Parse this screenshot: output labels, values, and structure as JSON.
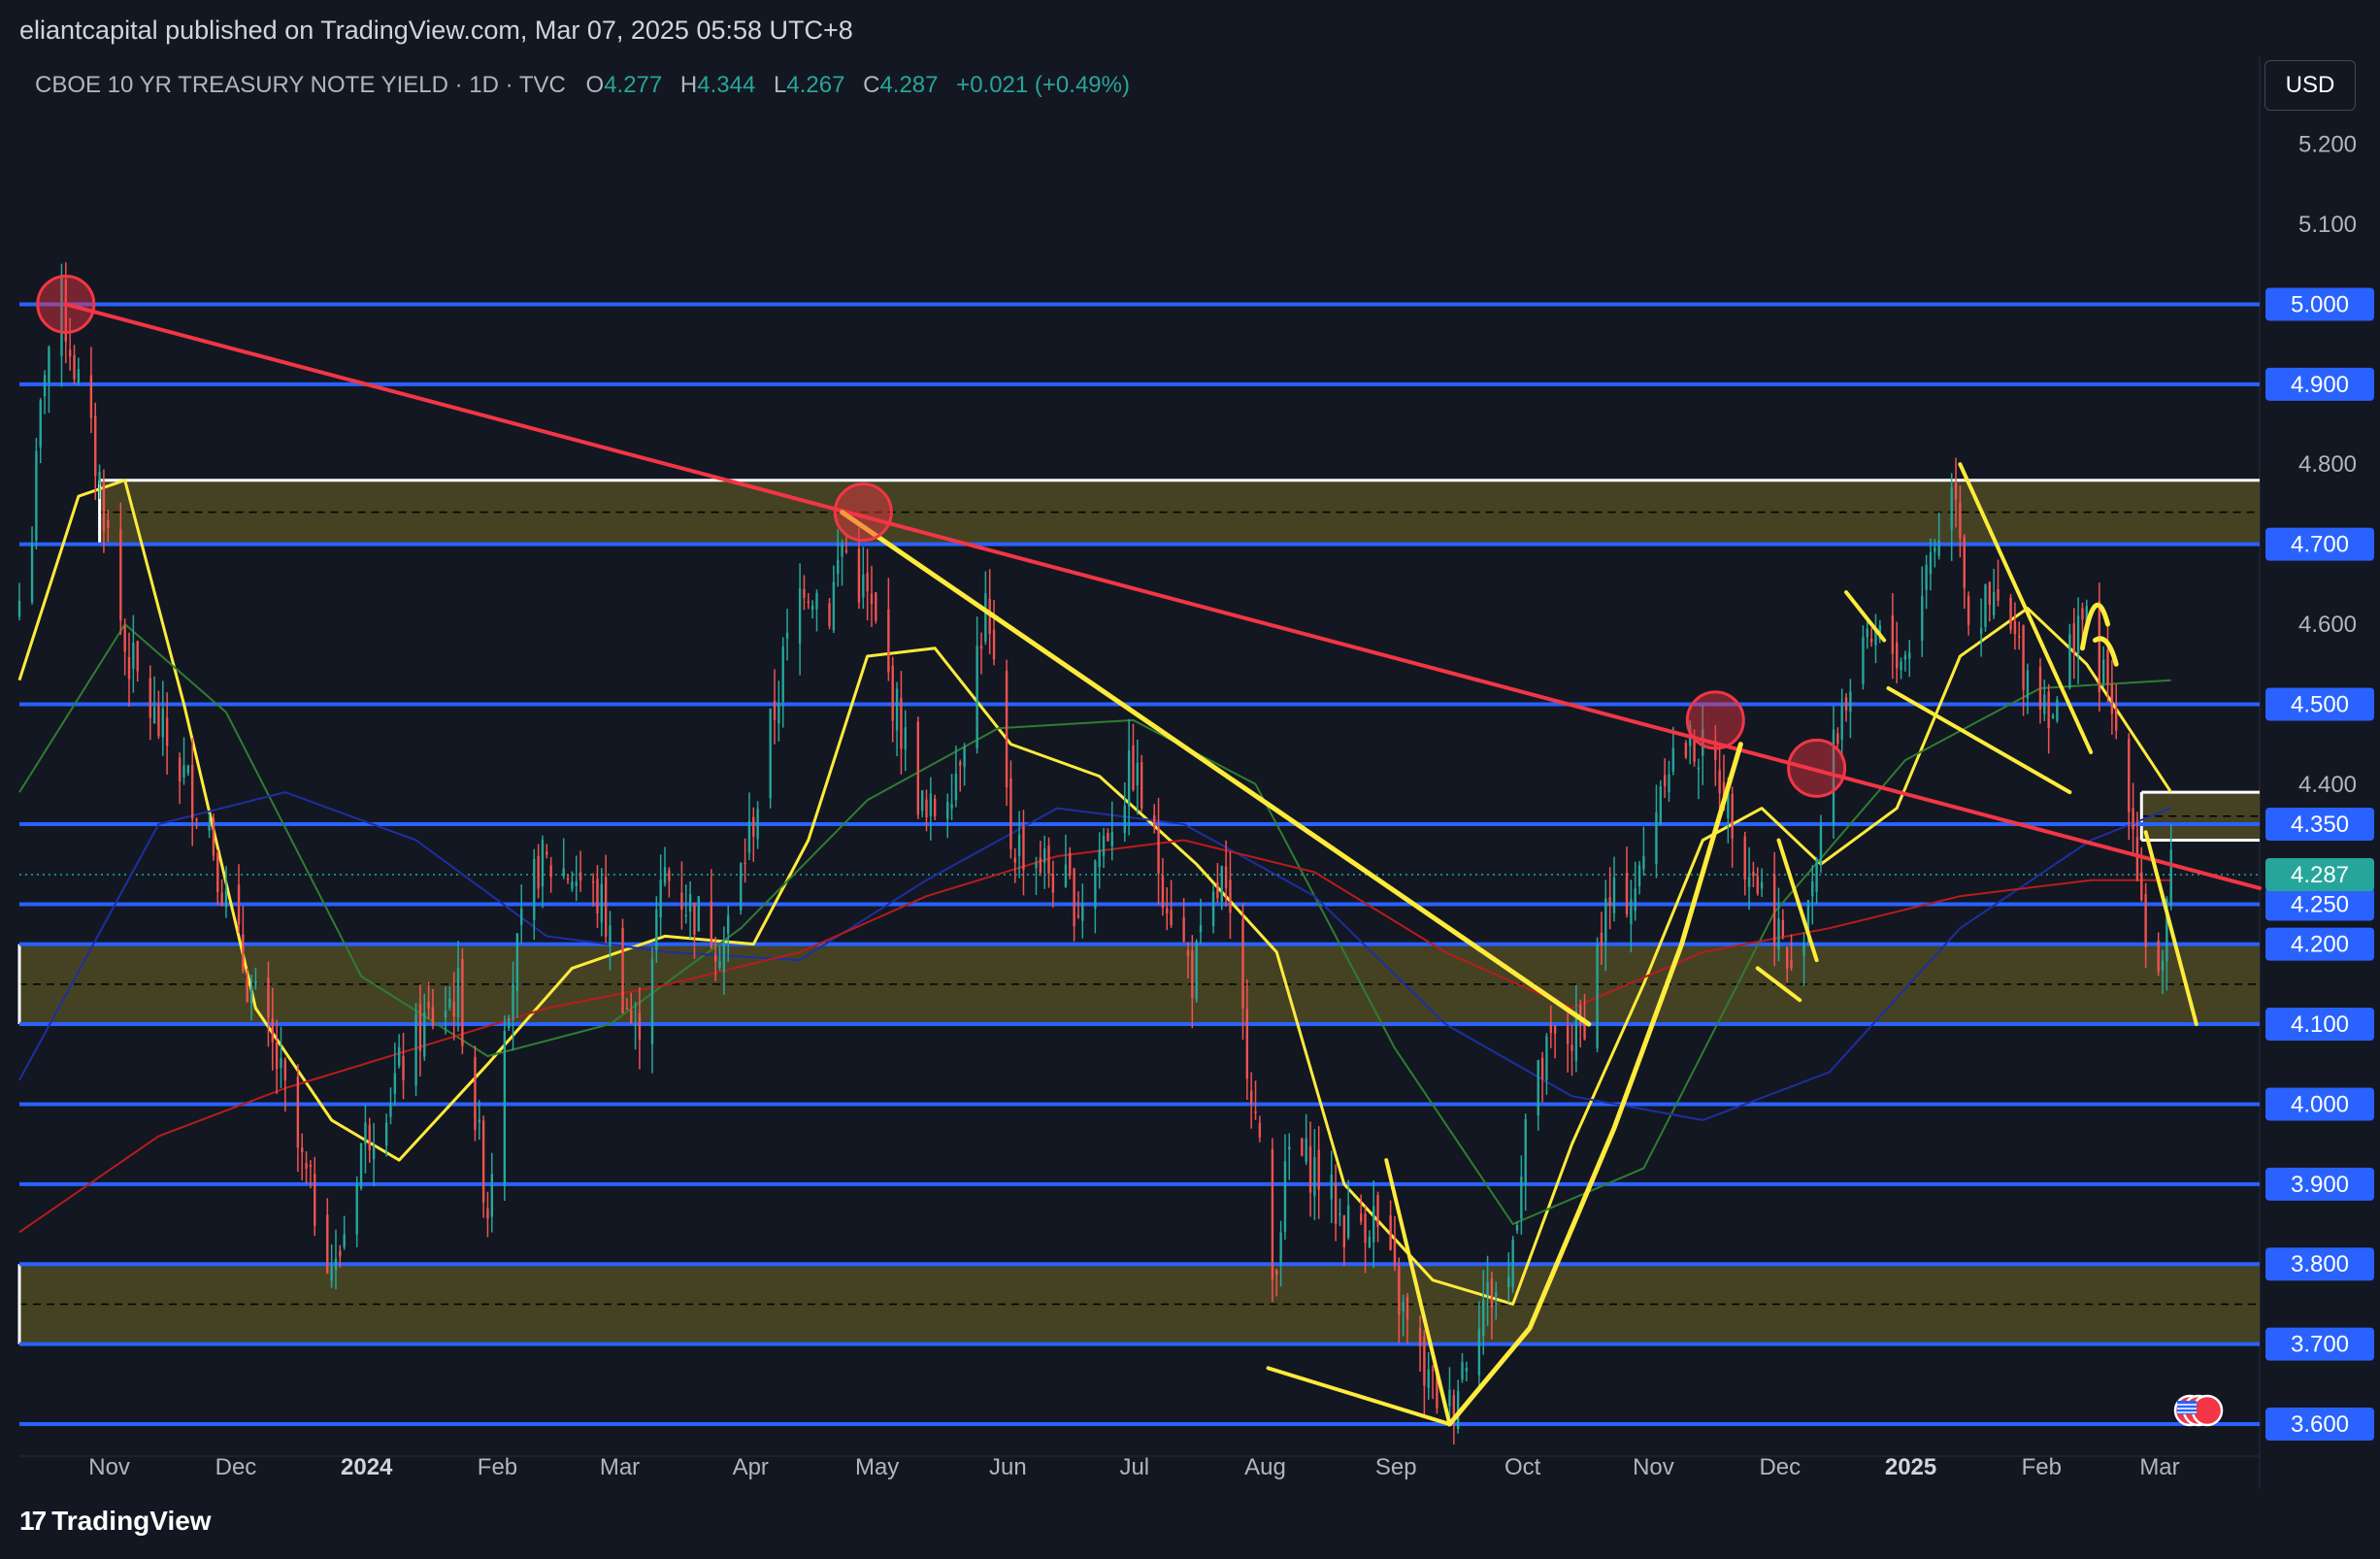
{
  "header": {
    "published": "eliantcapital published on TradingView.com, Mar 07, 2025 05:58 UTC+8"
  },
  "legend": {
    "symbol": "CBOE 10 YR TREASURY NOTE YIELD · 1D · TVC",
    "open_label": "O",
    "open": "4.277",
    "high_label": "H",
    "high": "4.344",
    "low_label": "L",
    "low": "4.267",
    "close_label": "C",
    "close": "4.287",
    "change": "+0.021 (+0.49%)"
  },
  "currency": "USD",
  "footer": {
    "brand": "TradingView",
    "logo_mark": "17"
  },
  "colors": {
    "background": "#131722",
    "up_candle": "#26a69a",
    "down_candle": "#ef5350",
    "level_line": "#2962ff",
    "zone_fill": "#4f4a25",
    "trendline_red": "#f23645",
    "trendline_yellow": "#ffeb3b"
  },
  "chart_data": {
    "type": "candlestick",
    "title": "CBOE 10 YR TREASURY NOTE YIELD · 1D · TVC",
    "ylim": [
      3.56,
      5.31
    ],
    "y_tick_labels": [
      "5.200",
      "5.100",
      "4.800",
      "4.600",
      "4.400"
    ],
    "x_tick_labels": [
      "Nov",
      "Dec",
      "2024",
      "Feb",
      "Mar",
      "Apr",
      "May",
      "Jun",
      "Jul",
      "Aug",
      "Sep",
      "Oct",
      "Nov",
      "Dec",
      "2025",
      "Feb",
      "Mar"
    ],
    "x_tick_bold": [
      "2024",
      "2025"
    ],
    "x_range": [
      "2023-10-13",
      "2025-03-27"
    ],
    "horizontal_levels": [
      {
        "value": 5.0,
        "label": "5.000"
      },
      {
        "value": 4.9,
        "label": "4.900"
      },
      {
        "value": 4.7,
        "label": "4.700"
      },
      {
        "value": 4.5,
        "label": "4.500"
      },
      {
        "value": 4.35,
        "label": "4.350"
      },
      {
        "value": 4.25,
        "label": "4.250"
      },
      {
        "value": 4.2,
        "label": "4.200"
      },
      {
        "value": 4.1,
        "label": "4.100"
      },
      {
        "value": 4.0,
        "label": "4.000"
      },
      {
        "value": 3.9,
        "label": "3.900"
      },
      {
        "value": 3.8,
        "label": "3.800"
      },
      {
        "value": 3.7,
        "label": "3.700"
      },
      {
        "value": 3.6,
        "label": "3.600"
      }
    ],
    "last_price": {
      "value": 4.287,
      "label": "4.287"
    },
    "zones": [
      {
        "from": 4.7,
        "to": 4.78,
        "start": "2023-11-01",
        "end": "2025-03-27"
      },
      {
        "from": 4.1,
        "to": 4.2,
        "start": "2023-10-13",
        "end": "2025-03-27"
      },
      {
        "from": 3.7,
        "to": 3.8,
        "start": "2023-10-13",
        "end": "2025-03-27"
      },
      {
        "from": 4.33,
        "to": 4.39,
        "start": "2025-02-27",
        "end": "2025-03-27"
      }
    ],
    "close_series": [
      [
        "2023-10-13",
        4.63
      ],
      [
        "2023-10-16",
        4.72
      ],
      [
        "2023-10-19",
        4.93
      ],
      [
        "2023-10-23",
        5.0
      ],
      [
        "2023-10-27",
        4.9
      ],
      [
        "2023-11-01",
        4.78
      ],
      [
        "2023-11-07",
        4.57
      ],
      [
        "2023-11-14",
        4.48
      ],
      [
        "2023-11-20",
        4.42
      ],
      [
        "2023-11-27",
        4.35
      ],
      [
        "2023-12-01",
        4.25
      ],
      [
        "2023-12-07",
        4.14
      ],
      [
        "2023-12-13",
        4.05
      ],
      [
        "2023-12-19",
        3.92
      ],
      [
        "2023-12-27",
        3.79
      ],
      [
        "2024-01-02",
        3.95
      ],
      [
        "2024-01-09",
        4.02
      ],
      [
        "2024-01-17",
        4.1
      ],
      [
        "2024-01-25",
        4.14
      ],
      [
        "2024-02-01",
        3.87
      ],
      [
        "2024-02-05",
        4.12
      ],
      [
        "2024-02-13",
        4.3
      ],
      [
        "2024-02-21",
        4.29
      ],
      [
        "2024-02-28",
        4.25
      ],
      [
        "2024-03-07",
        4.08
      ],
      [
        "2024-03-14",
        4.29
      ],
      [
        "2024-03-21",
        4.24
      ],
      [
        "2024-03-28",
        4.2
      ],
      [
        "2024-04-05",
        4.38
      ],
      [
        "2024-04-11",
        4.55
      ],
      [
        "2024-04-16",
        4.66
      ],
      [
        "2024-04-22",
        4.62
      ],
      [
        "2024-04-25",
        4.7
      ],
      [
        "2024-05-01",
        4.63
      ],
      [
        "2024-05-08",
        4.49
      ],
      [
        "2024-05-15",
        4.35
      ],
      [
        "2024-05-22",
        4.42
      ],
      [
        "2024-05-29",
        4.62
      ],
      [
        "2024-06-04",
        4.33
      ],
      [
        "2024-06-12",
        4.3
      ],
      [
        "2024-06-20",
        4.25
      ],
      [
        "2024-06-28",
        4.36
      ],
      [
        "2024-07-03",
        4.42
      ],
      [
        "2024-07-10",
        4.28
      ],
      [
        "2024-07-17",
        4.16
      ],
      [
        "2024-07-24",
        4.28
      ],
      [
        "2024-07-31",
        4.03
      ],
      [
        "2024-08-05",
        3.78
      ],
      [
        "2024-08-09",
        3.94
      ],
      [
        "2024-08-15",
        3.92
      ],
      [
        "2024-08-22",
        3.85
      ],
      [
        "2024-08-29",
        3.86
      ],
      [
        "2024-09-06",
        3.72
      ],
      [
        "2024-09-11",
        3.65
      ],
      [
        "2024-09-16",
        3.62
      ],
      [
        "2024-09-23",
        3.75
      ],
      [
        "2024-09-30",
        3.78
      ],
      [
        "2024-10-04",
        3.98
      ],
      [
        "2024-10-10",
        4.07
      ],
      [
        "2024-10-17",
        4.09
      ],
      [
        "2024-10-23",
        4.24
      ],
      [
        "2024-10-31",
        4.28
      ],
      [
        "2024-11-06",
        4.43
      ],
      [
        "2024-11-13",
        4.45
      ],
      [
        "2024-11-19",
        4.41
      ],
      [
        "2024-11-26",
        4.3
      ],
      [
        "2024-12-03",
        4.22
      ],
      [
        "2024-12-06",
        4.15
      ],
      [
        "2024-12-12",
        4.32
      ],
      [
        "2024-12-18",
        4.5
      ],
      [
        "2024-12-26",
        4.58
      ],
      [
        "2025-01-02",
        4.56
      ],
      [
        "2025-01-08",
        4.69
      ],
      [
        "2025-01-14",
        4.78
      ],
      [
        "2025-01-17",
        4.61
      ],
      [
        "2025-01-24",
        4.62
      ],
      [
        "2025-01-31",
        4.54
      ],
      [
        "2025-02-07",
        4.49
      ],
      [
        "2025-02-12",
        4.62
      ],
      [
        "2025-02-18",
        4.53
      ],
      [
        "2025-02-24",
        4.4
      ],
      [
        "2025-02-28",
        4.21
      ],
      [
        "2025-03-04",
        4.16
      ],
      [
        "2025-03-06",
        4.287
      ]
    ],
    "moving_averages": [
      {
        "color": "#ffeb3b",
        "points": [
          [
            "2023-10-13",
            4.53
          ],
          [
            "2023-10-27",
            4.76
          ],
          [
            "2023-11-07",
            4.78
          ],
          [
            "2023-11-21",
            4.5
          ],
          [
            "2023-12-08",
            4.12
          ],
          [
            "2023-12-26",
            3.98
          ],
          [
            "2024-01-11",
            3.93
          ],
          [
            "2024-02-01",
            4.05
          ],
          [
            "2024-02-21",
            4.17
          ],
          [
            "2024-03-14",
            4.21
          ],
          [
            "2024-04-04",
            4.2
          ],
          [
            "2024-04-17",
            4.33
          ],
          [
            "2024-05-01",
            4.56
          ],
          [
            "2024-05-17",
            4.57
          ],
          [
            "2024-06-04",
            4.45
          ],
          [
            "2024-06-25",
            4.41
          ],
          [
            "2024-07-18",
            4.3
          ],
          [
            "2024-08-06",
            4.19
          ],
          [
            "2024-08-22",
            3.9
          ],
          [
            "2024-09-12",
            3.78
          ],
          [
            "2024-10-01",
            3.75
          ],
          [
            "2024-10-15",
            3.95
          ],
          [
            "2024-11-01",
            4.15
          ],
          [
            "2024-11-15",
            4.33
          ],
          [
            "2024-11-29",
            4.37
          ],
          [
            "2024-12-13",
            4.3
          ],
          [
            "2024-12-31",
            4.37
          ],
          [
            "2025-01-15",
            4.56
          ],
          [
            "2025-01-31",
            4.62
          ],
          [
            "2025-02-14",
            4.55
          ],
          [
            "2025-03-06",
            4.39
          ]
        ]
      },
      {
        "color": "#2e7d32",
        "points": [
          [
            "2023-10-13",
            4.39
          ],
          [
            "2023-11-07",
            4.6
          ],
          [
            "2023-12-01",
            4.49
          ],
          [
            "2024-01-02",
            4.16
          ],
          [
            "2024-02-01",
            4.06
          ],
          [
            "2024-03-01",
            4.1
          ],
          [
            "2024-04-01",
            4.22
          ],
          [
            "2024-05-01",
            4.38
          ],
          [
            "2024-06-01",
            4.47
          ],
          [
            "2024-07-03",
            4.48
          ],
          [
            "2024-08-01",
            4.4
          ],
          [
            "2024-09-03",
            4.07
          ],
          [
            "2024-10-01",
            3.85
          ],
          [
            "2024-11-01",
            3.92
          ],
          [
            "2024-12-02",
            4.24
          ],
          [
            "2025-01-02",
            4.43
          ],
          [
            "2025-02-03",
            4.52
          ],
          [
            "2025-03-06",
            4.53
          ]
        ]
      },
      {
        "color": "#1e2fa0",
        "points": [
          [
            "2023-10-13",
            4.03
          ],
          [
            "2023-11-15",
            4.35
          ],
          [
            "2023-12-15",
            4.39
          ],
          [
            "2024-01-15",
            4.33
          ],
          [
            "2024-02-15",
            4.21
          ],
          [
            "2024-03-15",
            4.19
          ],
          [
            "2024-04-15",
            4.18
          ],
          [
            "2024-05-15",
            4.28
          ],
          [
            "2024-06-15",
            4.37
          ],
          [
            "2024-07-15",
            4.35
          ],
          [
            "2024-08-15",
            4.26
          ],
          [
            "2024-09-15",
            4.1
          ],
          [
            "2024-10-15",
            4.01
          ],
          [
            "2024-11-15",
            3.98
          ],
          [
            "2024-12-15",
            4.04
          ],
          [
            "2025-01-15",
            4.22
          ],
          [
            "2025-02-15",
            4.33
          ],
          [
            "2025-03-06",
            4.37
          ]
        ]
      },
      {
        "color": "#b71c1c",
        "points": [
          [
            "2023-10-13",
            3.84
          ],
          [
            "2023-11-15",
            3.96
          ],
          [
            "2023-12-15",
            4.02
          ],
          [
            "2024-01-15",
            4.07
          ],
          [
            "2024-02-15",
            4.12
          ],
          [
            "2024-03-15",
            4.15
          ],
          [
            "2024-04-15",
            4.19
          ],
          [
            "2024-05-15",
            4.26
          ],
          [
            "2024-06-15",
            4.31
          ],
          [
            "2024-07-15",
            4.33
          ],
          [
            "2024-08-15",
            4.29
          ],
          [
            "2024-09-15",
            4.19
          ],
          [
            "2024-10-15",
            4.12
          ],
          [
            "2024-11-15",
            4.19
          ],
          [
            "2024-12-15",
            4.22
          ],
          [
            "2025-01-15",
            4.26
          ],
          [
            "2025-02-15",
            4.28
          ],
          [
            "2025-03-06",
            4.28
          ]
        ]
      }
    ],
    "trendlines": [
      {
        "color": "#f23645",
        "width": 4,
        "from": [
          "2023-10-24",
          5.0
        ],
        "to": [
          "2025-03-27",
          4.27
        ]
      },
      {
        "color": "#ffeb3b",
        "width": 5,
        "from": [
          "2024-04-25",
          4.74
        ],
        "to": [
          "2024-10-19",
          4.1
        ]
      },
      {
        "color": "#ffeb3b",
        "width": 4,
        "from": [
          "2024-08-04",
          3.67
        ],
        "to": [
          "2024-09-16",
          3.6
        ]
      },
      {
        "color": "#ffeb3b",
        "width": 4,
        "from": [
          "2024-09-01",
          3.93
        ],
        "to": [
          "2024-09-16",
          3.6
        ]
      },
      {
        "color": "#ffeb3b",
        "width": 4,
        "from": [
          "2024-12-03",
          4.33
        ],
        "to": [
          "2024-12-12",
          4.18
        ]
      },
      {
        "color": "#ffeb3b",
        "width": 4,
        "from": [
          "2024-11-28",
          4.17
        ],
        "to": [
          "2024-12-08",
          4.13
        ]
      },
      {
        "color": "#ffeb3b",
        "width": 4,
        "from": [
          "2024-12-19",
          4.64
        ],
        "to": [
          "2024-12-28",
          4.58
        ]
      },
      {
        "color": "#ffeb3b",
        "width": 4,
        "from": [
          "2024-12-29",
          4.52
        ],
        "to": [
          "2025-02-10",
          4.39
        ]
      },
      {
        "color": "#ffeb3b",
        "width": 4,
        "from": [
          "2025-01-15",
          4.8
        ],
        "to": [
          "2025-02-15",
          4.44
        ]
      },
      {
        "color": "#ffeb3b",
        "width": 4,
        "from": [
          "2025-02-28",
          4.34
        ],
        "to": [
          "2025-03-12",
          4.1
        ]
      }
    ],
    "curves": [
      {
        "color": "#ffeb3b",
        "width": 5,
        "points": [
          [
            "2024-09-16",
            3.6
          ],
          [
            "2024-10-05",
            3.72
          ],
          [
            "2024-10-25",
            3.97
          ],
          [
            "2024-11-10",
            4.2
          ],
          [
            "2024-11-24",
            4.45
          ]
        ]
      },
      {
        "color": "#ffeb3b",
        "width": 5,
        "points": [
          [
            "2025-02-13",
            4.57
          ],
          [
            "2025-02-16",
            4.66
          ],
          [
            "2025-02-19",
            4.6
          ]
        ]
      },
      {
        "color": "#ffeb3b",
        "width": 5,
        "points": [
          [
            "2025-02-16",
            4.58
          ],
          [
            "2025-02-19",
            4.59
          ],
          [
            "2025-02-21",
            4.55
          ]
        ]
      }
    ],
    "circle_markers": [
      {
        "x": "2023-10-24",
        "y": 5.0
      },
      {
        "x": "2024-04-30",
        "y": 4.74
      },
      {
        "x": "2024-11-18",
        "y": 4.48
      },
      {
        "x": "2024-12-12",
        "y": 4.42
      }
    ]
  }
}
